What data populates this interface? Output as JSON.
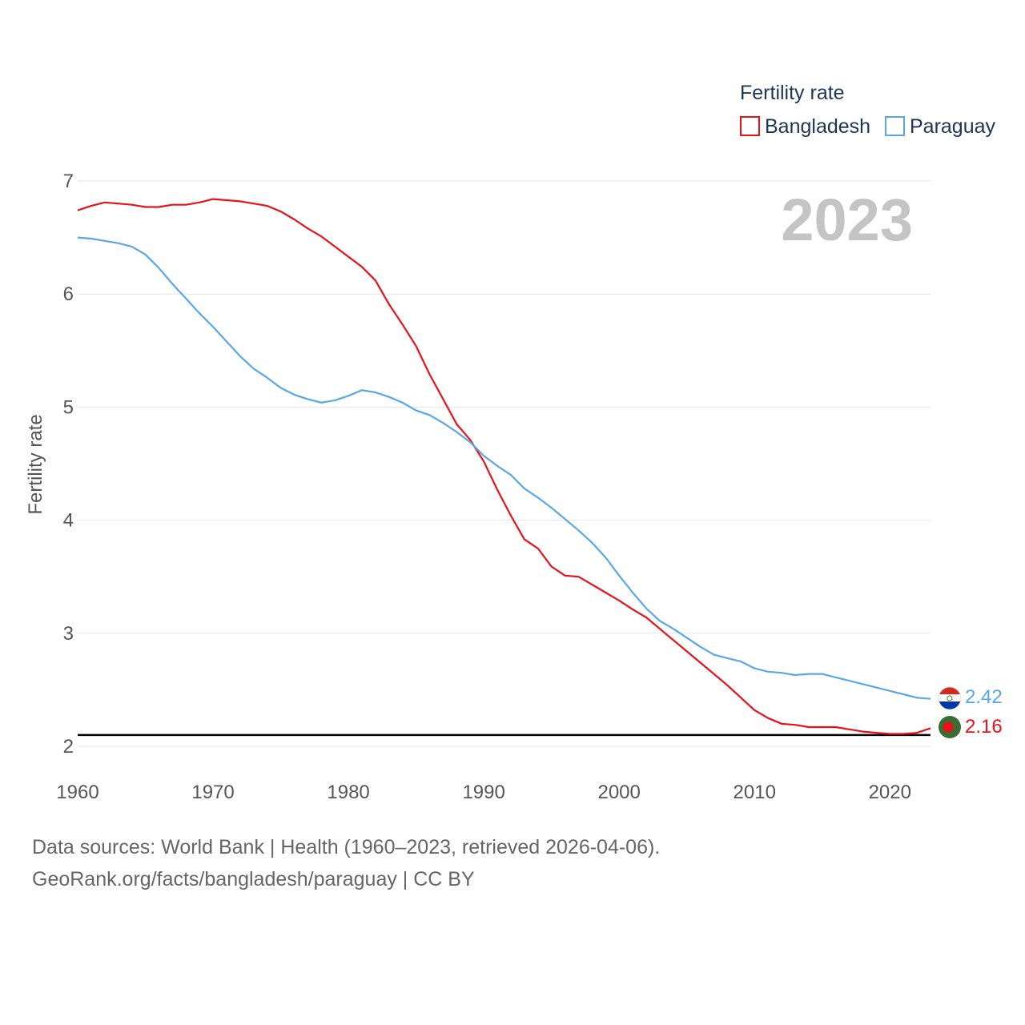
{
  "chart_data": {
    "type": "line",
    "ylabel": "Fertility rate",
    "xlabel": "",
    "ylim": [
      2,
      7
    ],
    "xlim": [
      1960,
      2023
    ],
    "y_ticks": [
      "2",
      "3",
      "4",
      "5",
      "6",
      "7"
    ],
    "x_ticks": [
      "1960",
      "1970",
      "1980",
      "1990",
      "2000",
      "2010",
      "2020"
    ],
    "current_year": "2023",
    "reference_line": 2.1,
    "legend": {
      "title": "Fertility rate",
      "position": "top-right"
    },
    "x": [
      1960,
      1961,
      1962,
      1963,
      1964,
      1965,
      1966,
      1967,
      1968,
      1969,
      1970,
      1971,
      1972,
      1973,
      1974,
      1975,
      1976,
      1977,
      1978,
      1979,
      1980,
      1981,
      1982,
      1983,
      1984,
      1985,
      1986,
      1987,
      1988,
      1989,
      1990,
      1991,
      1992,
      1993,
      1994,
      1995,
      1996,
      1997,
      1998,
      1999,
      2000,
      2001,
      2002,
      2003,
      2004,
      2005,
      2006,
      2007,
      2008,
      2009,
      2010,
      2011,
      2012,
      2013,
      2014,
      2015,
      2016,
      2017,
      2018,
      2019,
      2020,
      2021,
      2022,
      2023
    ],
    "series": [
      {
        "name": "Bangladesh",
        "color": "#e8111b",
        "end_label": "2.16",
        "values": [
          6.74,
          6.78,
          6.81,
          6.8,
          6.79,
          6.77,
          6.77,
          6.79,
          6.79,
          6.81,
          6.84,
          6.83,
          6.82,
          6.8,
          6.78,
          6.73,
          6.66,
          6.58,
          6.51,
          6.42,
          6.33,
          6.24,
          6.12,
          5.91,
          5.73,
          5.54,
          5.29,
          5.07,
          4.85,
          4.71,
          4.52,
          4.27,
          4.04,
          3.83,
          3.75,
          3.59,
          3.51,
          3.5,
          3.43,
          3.36,
          3.29,
          3.21,
          3.14,
          3.04,
          2.94,
          2.84,
          2.74,
          2.64,
          2.54,
          2.43,
          2.32,
          2.25,
          2.2,
          2.19,
          2.17,
          2.17,
          2.17,
          2.15,
          2.13,
          2.12,
          2.11,
          2.11,
          2.12,
          2.16
        ]
      },
      {
        "name": "Paraguay",
        "color": "#5aa7e8",
        "end_label": "2.42",
        "values": [
          6.5,
          6.49,
          6.47,
          6.45,
          6.42,
          6.35,
          6.23,
          6.09,
          5.96,
          5.83,
          5.71,
          5.58,
          5.45,
          5.34,
          5.26,
          5.17,
          5.11,
          5.07,
          5.04,
          5.06,
          5.1,
          5.15,
          5.13,
          5.09,
          5.04,
          4.97,
          4.93,
          4.86,
          4.78,
          4.69,
          4.57,
          4.48,
          4.4,
          4.28,
          4.2,
          4.11,
          4.01,
          3.91,
          3.8,
          3.67,
          3.51,
          3.36,
          3.22,
          3.11,
          3.04,
          2.96,
          2.88,
          2.81,
          2.78,
          2.75,
          2.69,
          2.66,
          2.65,
          2.63,
          2.64,
          2.64,
          2.61,
          2.58,
          2.55,
          2.52,
          2.49,
          2.46,
          2.43,
          2.42
        ]
      }
    ]
  },
  "source": {
    "line1": "Data sources: World Bank | Health (1960–2023, retrieved 2026-04-06).",
    "line2": "GeoRank.org/facts/bangladesh/paraguay | CC BY"
  }
}
